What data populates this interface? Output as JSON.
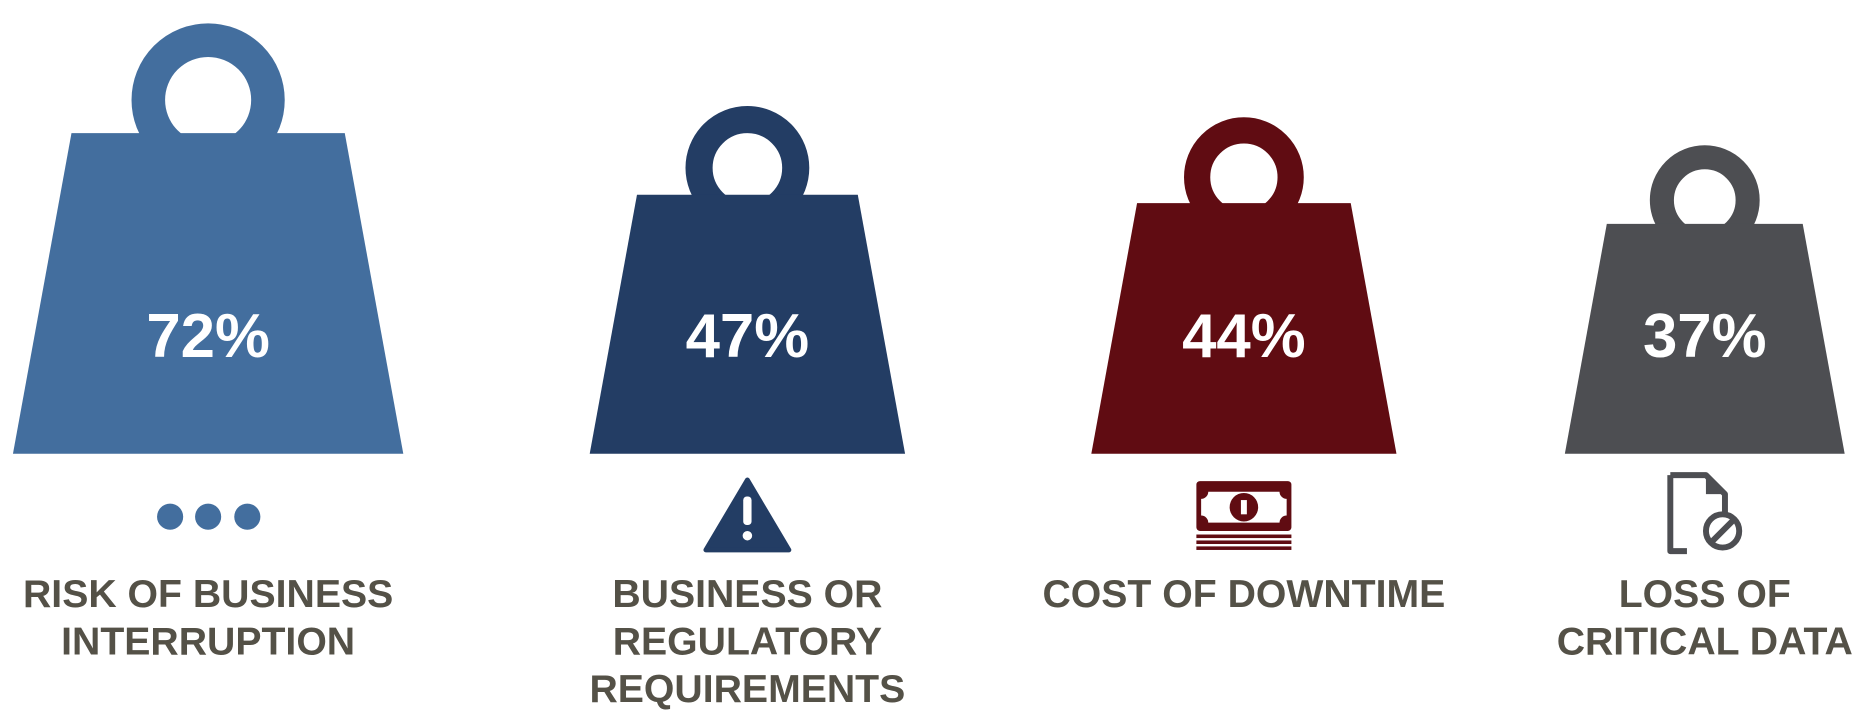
{
  "chart_data": {
    "type": "pictograph",
    "categories": [
      "RISK OF BUSINESS INTERRUPTION",
      "BUSINESS OR REGULATORY REQUIREMENTS",
      "COST OF DOWNTIME",
      "LOSS OF CRITICAL DATA"
    ],
    "values": [
      72,
      47,
      44,
      37
    ],
    "value_labels": [
      "72%",
      "47%",
      "44%",
      "37%"
    ],
    "colors": [
      "#436e9e",
      "#233d64",
      "#600c12",
      "#4d4e52"
    ]
  }
}
